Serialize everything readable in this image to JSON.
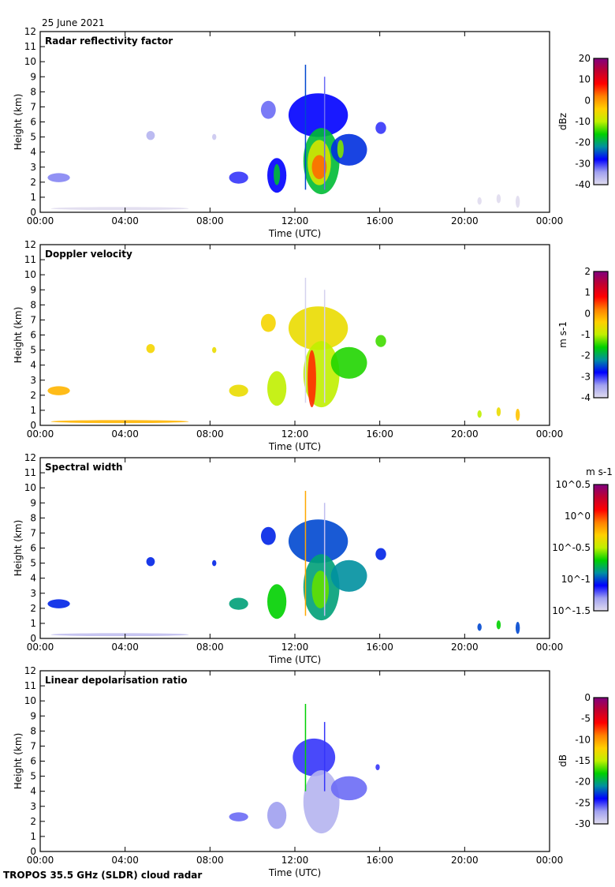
{
  "header": {
    "date": "25 June 2021"
  },
  "footer": {
    "label": "TROPOS 35.5 GHz (SLDR) cloud radar"
  },
  "colors": {
    "colormap": [
      "#e0dcee",
      "#a0a0f0",
      "#0000ff",
      "#0090a0",
      "#00d000",
      "#c0f000",
      "#ffd000",
      "#ff8000",
      "#ff0000",
      "#c00030",
      "#800080"
    ]
  },
  "chart_data": [
    {
      "type": "heatmap",
      "title": "Radar reflectivity factor",
      "xlabel": "Time (UTC)",
      "ylabel": "Height (km)",
      "xlim": [
        0,
        24
      ],
      "ylim": [
        0,
        12
      ],
      "xticks": [
        0,
        4,
        8,
        12,
        16,
        20,
        24
      ],
      "xticklabels": [
        "00:00",
        "04:00",
        "08:00",
        "12:00",
        "16:00",
        "20:00",
        "00:00"
      ],
      "yticks": [
        0,
        1,
        2,
        3,
        4,
        5,
        6,
        7,
        8,
        9,
        10,
        11,
        12
      ],
      "colorbar": {
        "label": "dBz",
        "range": [
          -40,
          20
        ],
        "ticks": [
          -40,
          -30,
          -20,
          -10,
          0,
          10,
          20
        ],
        "ticklabels": [
          "-40",
          "-30",
          "-20",
          "-10",
          "0",
          "10",
          "20"
        ]
      },
      "features": [
        {
          "t": [
            0.35,
            1.4
          ],
          "h": [
            2.0,
            2.6
          ],
          "v": -33
        },
        {
          "t": [
            5.0,
            5.4
          ],
          "h": [
            4.8,
            5.4
          ],
          "v": -36
        },
        {
          "t": [
            8.1,
            8.3
          ],
          "h": [
            4.8,
            5.2
          ],
          "v": -38
        },
        {
          "t": [
            8.9,
            9.8
          ],
          "h": [
            1.9,
            2.7
          ],
          "v": -30
        },
        {
          "t": [
            10.7,
            11.6
          ],
          "h": [
            1.3,
            3.6
          ],
          "v": -28
        },
        {
          "t": [
            11.0,
            11.3
          ],
          "h": [
            1.8,
            3.2
          ],
          "v": -18
        },
        {
          "t": [
            10.4,
            11.1
          ],
          "h": [
            6.2,
            7.4
          ],
          "v": -32
        },
        {
          "t": [
            11.7,
            14.5
          ],
          "h": [
            5.0,
            7.9
          ],
          "v": -28
        },
        {
          "t": [
            12.4,
            14.1
          ],
          "h": [
            1.2,
            5.6
          ],
          "v": -18
        },
        {
          "t": [
            12.6,
            13.7
          ],
          "h": [
            1.8,
            4.8
          ],
          "v": -8
        },
        {
          "t": [
            12.8,
            13.5
          ],
          "h": [
            2.2,
            3.8
          ],
          "v": 3
        },
        {
          "t": [
            13.7,
            15.4
          ],
          "h": [
            3.1,
            5.2
          ],
          "v": -26
        },
        {
          "t": [
            14.0,
            14.3
          ],
          "h": [
            3.6,
            4.8
          ],
          "v": -12
        },
        {
          "t": [
            15.8,
            16.3
          ],
          "h": [
            5.2,
            6.0
          ],
          "v": -30
        },
        {
          "t": [
            0.5,
            7.0
          ],
          "h": [
            0.15,
            0.35
          ],
          "v": -40
        },
        {
          "t": [
            20.6,
            20.8
          ],
          "h": [
            0.5,
            1.0
          ],
          "v": -40
        },
        {
          "t": [
            21.5,
            21.7
          ],
          "h": [
            0.6,
            1.2
          ],
          "v": -40
        },
        {
          "t": [
            22.4,
            22.6
          ],
          "h": [
            0.3,
            1.1
          ],
          "v": -40
        }
      ],
      "lines": [
        {
          "t": 12.5,
          "h": [
            1.5,
            9.8
          ],
          "v": -25
        },
        {
          "t": 13.4,
          "h": [
            1.5,
            9.0
          ],
          "v": -32
        }
      ]
    },
    {
      "type": "heatmap",
      "title": "Doppler velocity",
      "xlabel": "Time (UTC)",
      "ylabel": "Height (km)",
      "xlim": [
        0,
        24
      ],
      "ylim": [
        0,
        12
      ],
      "xticks": [
        0,
        4,
        8,
        12,
        16,
        20,
        24
      ],
      "xticklabels": [
        "00:00",
        "04:00",
        "08:00",
        "12:00",
        "16:00",
        "20:00",
        "00:00"
      ],
      "yticks": [
        0,
        1,
        2,
        3,
        4,
        5,
        6,
        7,
        8,
        9,
        10,
        11,
        12
      ],
      "colorbar": {
        "label": "m s-1",
        "range": [
          -4,
          2
        ],
        "ticks": [
          -4,
          -3,
          -2,
          -1,
          0,
          1,
          2
        ],
        "ticklabels": [
          "-4",
          "-3",
          "-2",
          "-1",
          "0",
          "1",
          "2"
        ]
      },
      "features": [
        {
          "t": [
            0.35,
            1.4
          ],
          "h": [
            2.0,
            2.6
          ],
          "v": -0.2
        },
        {
          "t": [
            5.0,
            5.4
          ],
          "h": [
            4.8,
            5.4
          ],
          "v": -0.5
        },
        {
          "t": [
            8.1,
            8.3
          ],
          "h": [
            4.8,
            5.2
          ],
          "v": -0.6
        },
        {
          "t": [
            8.9,
            9.8
          ],
          "h": [
            1.9,
            2.7
          ],
          "v": -0.6
        },
        {
          "t": [
            10.7,
            11.6
          ],
          "h": [
            1.3,
            3.6
          ],
          "v": -1.0
        },
        {
          "t": [
            10.4,
            11.1
          ],
          "h": [
            6.2,
            7.4
          ],
          "v": -0.5
        },
        {
          "t": [
            11.7,
            14.5
          ],
          "h": [
            5.0,
            7.9
          ],
          "v": -0.6
        },
        {
          "t": [
            12.4,
            14.1
          ],
          "h": [
            1.2,
            5.6
          ],
          "v": -1.0
        },
        {
          "t": [
            12.6,
            13.0
          ],
          "h": [
            1.2,
            5.0
          ],
          "v": 0.6
        },
        {
          "t": [
            13.7,
            15.4
          ],
          "h": [
            3.1,
            5.2
          ],
          "v": -1.5
        },
        {
          "t": [
            15.8,
            16.3
          ],
          "h": [
            5.2,
            6.0
          ],
          "v": -1.4
        },
        {
          "t": [
            0.5,
            7.0
          ],
          "h": [
            0.15,
            0.35
          ],
          "v": -0.2
        },
        {
          "t": [
            20.6,
            20.8
          ],
          "h": [
            0.5,
            1.0
          ],
          "v": -1.0
        },
        {
          "t": [
            21.5,
            21.7
          ],
          "h": [
            0.6,
            1.2
          ],
          "v": -0.6
        },
        {
          "t": [
            22.4,
            22.6
          ],
          "h": [
            0.3,
            1.1
          ],
          "v": -0.3
        }
      ],
      "lines": [
        {
          "t": 12.5,
          "h": [
            1.5,
            9.8
          ],
          "v": -3.9
        },
        {
          "t": 13.4,
          "h": [
            1.5,
            9.0
          ],
          "v": -3.9
        }
      ]
    },
    {
      "type": "heatmap",
      "title": "Spectral width",
      "xlabel": "Time (UTC)",
      "ylabel": "Height (km)",
      "xlim": [
        0,
        24
      ],
      "ylim": [
        0,
        12
      ],
      "xticks": [
        0,
        4,
        8,
        12,
        16,
        20,
        24
      ],
      "xticklabels": [
        "00:00",
        "04:00",
        "08:00",
        "12:00",
        "16:00",
        "20:00",
        "00:00"
      ],
      "yticks": [
        0,
        1,
        2,
        3,
        4,
        5,
        6,
        7,
        8,
        9,
        10,
        11,
        12
      ],
      "colorbar": {
        "label": "m s-1",
        "scale": "log10",
        "range": [
          -1.5,
          0.5
        ],
        "ticks": [
          -1.5,
          -1,
          -0.5,
          0,
          0.5
        ],
        "ticklabels": [
          "10^-1.5",
          "10^-1",
          "10^-0.5",
          "10^0",
          "10^0.5"
        ]
      },
      "features": [
        {
          "t": [
            0.35,
            1.4
          ],
          "h": [
            2.0,
            2.6
          ],
          "v": -1.05
        },
        {
          "t": [
            5.0,
            5.4
          ],
          "h": [
            4.8,
            5.4
          ],
          "v": -1.05
        },
        {
          "t": [
            8.1,
            8.3
          ],
          "h": [
            4.8,
            5.2
          ],
          "v": -1.05
        },
        {
          "t": [
            8.9,
            9.8
          ],
          "h": [
            1.9,
            2.7
          ],
          "v": -0.85
        },
        {
          "t": [
            10.7,
            11.6
          ],
          "h": [
            1.3,
            3.6
          ],
          "v": -0.7
        },
        {
          "t": [
            10.4,
            11.1
          ],
          "h": [
            6.2,
            7.4
          ],
          "v": -1.05
        },
        {
          "t": [
            11.7,
            14.5
          ],
          "h": [
            5.0,
            7.9
          ],
          "v": -1.0
        },
        {
          "t": [
            12.4,
            14.1
          ],
          "h": [
            1.2,
            5.6
          ],
          "v": -0.85
        },
        {
          "t": [
            12.8,
            13.6
          ],
          "h": [
            2.0,
            4.5
          ],
          "v": -0.6
        },
        {
          "t": [
            13.7,
            15.4
          ],
          "h": [
            3.1,
            5.2
          ],
          "v": -0.9
        },
        {
          "t": [
            15.8,
            16.3
          ],
          "h": [
            5.2,
            6.0
          ],
          "v": -1.05
        },
        {
          "t": [
            0.5,
            7.0
          ],
          "h": [
            0.15,
            0.35
          ],
          "v": -1.4
        },
        {
          "t": [
            20.6,
            20.8
          ],
          "h": [
            0.5,
            1.0
          ],
          "v": -1.0
        },
        {
          "t": [
            21.5,
            21.7
          ],
          "h": [
            0.6,
            1.2
          ],
          "v": -0.7
        },
        {
          "t": [
            22.4,
            22.6
          ],
          "h": [
            0.3,
            1.1
          ],
          "v": -1.0
        }
      ],
      "lines": [
        {
          "t": 12.5,
          "h": [
            1.5,
            9.8
          ],
          "v": -0.2
        },
        {
          "t": 13.4,
          "h": [
            1.5,
            9.0
          ],
          "v": -1.4
        }
      ]
    },
    {
      "type": "heatmap",
      "title": "Linear depolarisation ratio",
      "xlabel": "Time (UTC)",
      "ylabel": "Height (km)",
      "xlim": [
        0,
        24
      ],
      "ylim": [
        0,
        12
      ],
      "xticks": [
        0,
        4,
        8,
        12,
        16,
        20,
        24
      ],
      "xticklabels": [
        "00:00",
        "04:00",
        "08:00",
        "12:00",
        "16:00",
        "20:00",
        "00:00"
      ],
      "yticks": [
        0,
        1,
        2,
        3,
        4,
        5,
        6,
        7,
        8,
        9,
        10,
        11,
        12
      ],
      "colorbar": {
        "label": "dB",
        "range": [
          -30,
          0
        ],
        "ticks": [
          -30,
          -25,
          -20,
          -15,
          -10,
          -5,
          0
        ],
        "ticklabels": [
          "-30",
          "-25",
          "-20",
          "-15",
          "-10",
          "-5",
          "0"
        ]
      },
      "features": [
        {
          "t": [
            8.9,
            9.8
          ],
          "h": [
            2.0,
            2.6
          ],
          "v": -26
        },
        {
          "t": [
            10.7,
            11.6
          ],
          "h": [
            1.5,
            3.3
          ],
          "v": -27
        },
        {
          "t": [
            11.9,
            13.9
          ],
          "h": [
            5.0,
            7.5
          ],
          "v": -25
        },
        {
          "t": [
            12.4,
            14.1
          ],
          "h": [
            1.2,
            5.4
          ],
          "v": -28
        },
        {
          "t": [
            13.7,
            15.4
          ],
          "h": [
            3.4,
            5.0
          ],
          "v": -26
        },
        {
          "t": [
            15.8,
            16.0
          ],
          "h": [
            5.4,
            5.8
          ],
          "v": -25
        }
      ],
      "lines": [
        {
          "t": 12.5,
          "h": [
            4.0,
            9.8
          ],
          "v": -18
        },
        {
          "t": 13.4,
          "h": [
            4.0,
            8.6
          ],
          "v": -25
        }
      ]
    }
  ]
}
